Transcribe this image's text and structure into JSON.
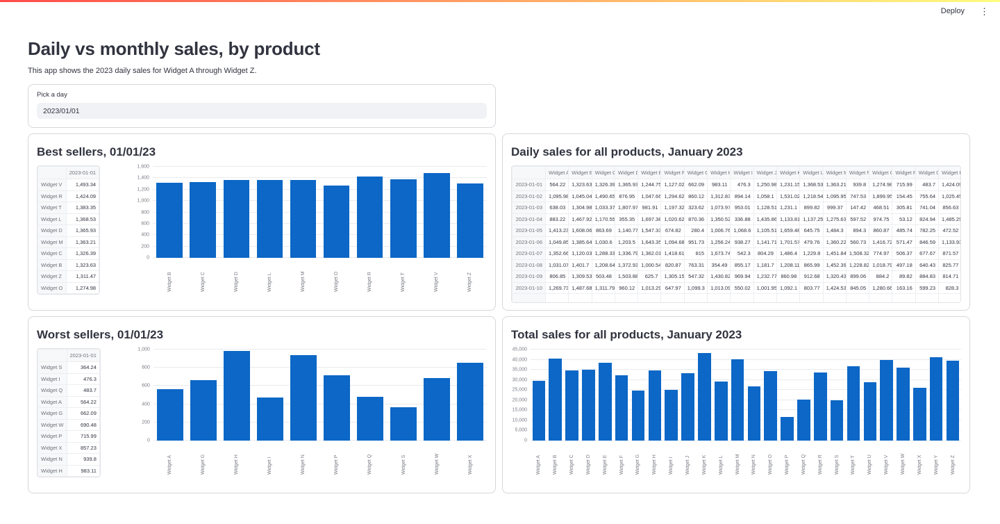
{
  "header": {
    "deploy_label": "Deploy"
  },
  "page": {
    "title": "Daily vs monthly sales, by product",
    "subtitle": "This app shows the 2023 daily sales for Widget A through Widget Z."
  },
  "date_picker": {
    "label": "Pick a day",
    "value": "2023/01/01"
  },
  "colors": {
    "bar_blue": "#0c67c6",
    "decoration_gradient_start": "#ff4b4b",
    "decoration_gradient_end": "#fffd80"
  },
  "panels": {
    "best_sellers": {
      "title": "Best sellers, 01/01/23",
      "table": {
        "value_header": "2023-01-01",
        "rows": [
          [
            "Widget V",
            "1,493.34"
          ],
          [
            "Widget R",
            "1,424.09"
          ],
          [
            "Widget T",
            "1,383.35"
          ],
          [
            "Widget L",
            "1,368.53"
          ],
          [
            "Widget D",
            "1,365.93"
          ],
          [
            "Widget M",
            "1,363.21"
          ],
          [
            "Widget C",
            "1,326.39"
          ],
          [
            "Widget B",
            "1,323.63"
          ],
          [
            "Widget Z",
            "1,311.47"
          ],
          [
            "Widget O",
            "1,274.98"
          ]
        ]
      }
    },
    "worst_sellers": {
      "title": "Worst sellers, 01/01/23",
      "table": {
        "value_header": "2023-01-01",
        "rows": [
          [
            "Widget S",
            "364.24"
          ],
          [
            "Widget I",
            "476.3"
          ],
          [
            "Widget Q",
            "483.7"
          ],
          [
            "Widget A",
            "564.22"
          ],
          [
            "Widget G",
            "662.09"
          ],
          [
            "Widget W",
            "690.48"
          ],
          [
            "Widget P",
            "715.99"
          ],
          [
            "Widget X",
            "857.23"
          ],
          [
            "Widget N",
            "939.8"
          ],
          [
            "Widget H",
            "983.11"
          ]
        ]
      }
    },
    "daily_sales": {
      "title": "Daily sales for all products, January 2023",
      "table": {
        "columns": [
          "Widget A",
          "Widget B",
          "Widget C",
          "Widget D",
          "Widget E",
          "Widget F",
          "Widget G",
          "Widget H",
          "Widget I",
          "Widget J",
          "Widget K",
          "Widget L",
          "Widget M",
          "Widget N",
          "Widget O",
          "Widget P",
          "Widget Q",
          "Widget R"
        ],
        "rows": [
          {
            "index": "2023-01-01",
            "values": [
              "564.22",
              "1,323.63",
              "1,326.39",
              "1,365.93",
              "1,244.75",
              "1,127.02",
              "662.09",
              "983.11",
              "476.3",
              "1,250.98",
              "1,231.15",
              "1,368.53",
              "1,363.21",
              "939.8",
              "1,274.98",
              "715.99",
              "483.7",
              "1,424.09"
            ]
          },
          {
            "index": "2023-01-02",
            "values": [
              "1,095.98",
              "1,045.04",
              "1,490.65",
              "876.95",
              "1,047.66",
              "1,294.62",
              "860.12",
              "1,312.83",
              "894.14",
              "1,058.1",
              "1,531.02",
              "1,218.54",
              "1,095.95",
              "747.53",
              "1,899.95",
              "154.45",
              "755.64",
              "1,025.45"
            ]
          },
          {
            "index": "2023-01-03",
            "values": [
              "638.03",
              "1,304.98",
              "1,033.37",
              "1,807.97",
              "981.91",
              "1,197.32",
              "323.62",
              "1,073.97",
              "953.01",
              "1,128.51",
              "1,231.1",
              "899.82",
              "999.37",
              "147.42",
              "468.51",
              "305.81",
              "741.04",
              "856.63"
            ]
          },
          {
            "index": "2023-01-04",
            "values": [
              "883.22",
              "1,467.92",
              "1,170.55",
              "355.35",
              "1,697.38",
              "1,020.62",
              "870.36",
              "1,350.52",
              "336.88",
              "1,435.86",
              "1,133.81",
              "1,137.25",
              "1,275.63",
              "597.52",
              "974.75",
              "53.12",
              "824.94",
              "1,485.29"
            ]
          },
          {
            "index": "2023-01-05",
            "values": [
              "1,413.23",
              "1,608.06",
              "863.69",
              "1,140.77",
              "1,547.33",
              "674.82",
              "280.4",
              "1,006.76",
              "1,068.6",
              "1,105.51",
              "1,659.48",
              "645.75",
              "1,484.3",
              "894.3",
              "860.87",
              "485.74",
              "782.25",
              "472.52"
            ]
          },
          {
            "index": "2023-01-06",
            "values": [
              "1,049.85",
              "1,385.64",
              "1,030.6",
              "1,203.5",
              "1,643.35",
              "1,094.68",
              "951.73",
              "1,256.24",
              "938.27",
              "1,141.71",
              "1,701.57",
              "479.76",
              "1,360.22",
              "560.73",
              "1,416.72",
              "571.47",
              "846.59",
              "1,133.93"
            ]
          },
          {
            "index": "2023-01-07",
            "values": [
              "1,352.66",
              "1,120.03",
              "1,288.33",
              "1,336.79",
              "1,362.01",
              "1,418.61",
              "815",
              "1,673.74",
              "542.3",
              "804.29",
              "1,486.4",
              "1,229.8",
              "1,451.84",
              "1,508.32",
              "774.97",
              "506.37",
              "677.67",
              "871.57"
            ]
          },
          {
            "index": "2023-01-08",
            "values": [
              "1,031.07",
              "1,401.7",
              "1,208.64",
              "1,372.93",
              "1,000.54",
              "820.87",
              "763.31",
              "354.49",
              "855.17",
              "1,181.7",
              "1,208.11",
              "865.99",
              "1,452.39",
              "1,228.82",
              "1,018.79",
              "497.18",
              "640.43",
              "825.77"
            ]
          },
          {
            "index": "2023-01-09",
            "values": [
              "806.85",
              "1,309.53",
              "503.48",
              "1,503.88",
              "625.7",
              "1,305.15",
              "547.32",
              "1,430.82",
              "969.94",
              "1,232.77",
              "860.98",
              "912.68",
              "1,320.43",
              "899.06",
              "884.2",
              "89.82",
              "884.83",
              "814.71"
            ]
          },
          {
            "index": "2023-01-10",
            "values": [
              "1,269.73",
              "1,487.68",
              "1,311.79",
              "960.12",
              "1,013.29",
              "647.97",
              "1,099.3",
              "1,013.09",
              "550.02",
              "1,001.95",
              "1,092.1",
              "803.77",
              "1,424.53",
              "845.05",
              "1,280.66",
              "163.16",
              "599.23",
              "828.3"
            ]
          }
        ]
      }
    },
    "total_sales": {
      "title": "Total sales for all products, January 2023"
    }
  },
  "chart_data": [
    {
      "type": "bar",
      "title": "Best sellers, 01/01/23",
      "categories": [
        "Widget B",
        "Widget C",
        "Widget D",
        "Widget L",
        "Widget M",
        "Widget O",
        "Widget R",
        "Widget T",
        "Widget V",
        "Widget Z"
      ],
      "values": [
        1323.63,
        1326.39,
        1365.93,
        1368.53,
        1363.21,
        1274.98,
        1424.09,
        1383.35,
        1493.34,
        1311.47
      ],
      "xlabel": "",
      "ylabel": "",
      "ylim": [
        0,
        1600
      ],
      "ytick_step": 200,
      "grid": true,
      "legend": false,
      "color": "#0c67c6"
    },
    {
      "type": "bar",
      "title": "Worst sellers, 01/01/23",
      "categories": [
        "Widget A",
        "Widget G",
        "Widget H",
        "Widget I",
        "Widget N",
        "Widget P",
        "Widget Q",
        "Widget S",
        "Widget W",
        "Widget X"
      ],
      "values": [
        564.22,
        662.09,
        983.11,
        476.3,
        939.8,
        715.99,
        483.7,
        364.24,
        690.48,
        857.23
      ],
      "xlabel": "",
      "ylabel": "",
      "ylim": [
        0,
        1000
      ],
      "ytick_step": 200,
      "grid": true,
      "legend": false,
      "color": "#0c67c6"
    },
    {
      "type": "bar",
      "title": "Total sales for all products, January 2023",
      "categories": [
        "Widget A",
        "Widget B",
        "Widget C",
        "Widget D",
        "Widget E",
        "Widget F",
        "Widget G",
        "Widget H",
        "Widget I",
        "Widget J",
        "Widget K",
        "Widget L",
        "Widget M",
        "Widget N",
        "Widget O",
        "Widget P",
        "Widget Q",
        "Widget R",
        "Widget S",
        "Widget T",
        "Widget U",
        "Widget V",
        "Widget W",
        "Widget X",
        "Widget Y",
        "Widget Z"
      ],
      "values": [
        29700,
        40700,
        34600,
        35200,
        38500,
        32200,
        24900,
        34800,
        25100,
        33400,
        43400,
        29300,
        40300,
        26700,
        34400,
        11800,
        20400,
        33700,
        20100,
        36700,
        28900,
        40000,
        36200,
        26000,
        41300,
        39500
      ],
      "xlabel": "",
      "ylabel": "",
      "ylim": [
        0,
        45000
      ],
      "ytick_step": 5000,
      "grid": true,
      "legend": false,
      "color": "#0c67c6"
    }
  ]
}
